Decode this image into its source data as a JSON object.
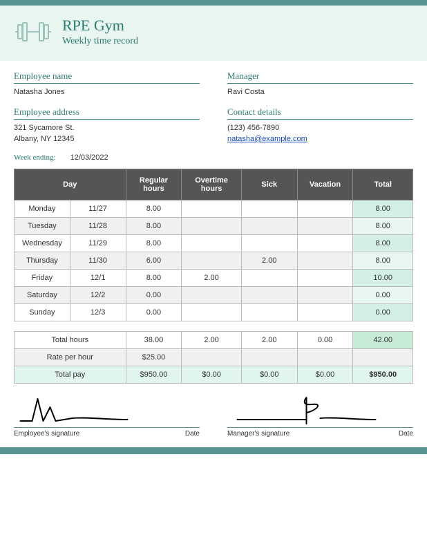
{
  "colors": {
    "accent": "#5a9490",
    "accent_text": "#2a7a6e",
    "header_band": "#e8f5f0",
    "table_header_bg": "#555555",
    "table_header_fg": "#ffffff",
    "row_alt": "#f0f0f0",
    "total_cell": "#d4f0e4",
    "total_cell_alt": "#e8f7f0",
    "highlight": "#c8ebd8",
    "pay_row": "#e0f5eb"
  },
  "header": {
    "company": "RPE Gym",
    "subtitle": "Weekly time record"
  },
  "info": {
    "employee_name_label": "Employee name",
    "employee_name": "Natasha Jones",
    "manager_label": "Manager",
    "manager": "Ravi Costa",
    "employee_address_label": "Employee address",
    "employee_address_line1": "321 Sycamore St.",
    "employee_address_line2": "Albany, NY 12345",
    "contact_label": "Contact details",
    "contact_phone": "(123) 456-7890",
    "contact_email": "natasha@example.com"
  },
  "week_ending": {
    "label": "Week ending:",
    "value": "12/03/2022"
  },
  "table": {
    "headers": {
      "day": "Day",
      "regular": "Regular hours",
      "overtime": "Overtime hours",
      "sick": "Sick",
      "vacation": "Vacation",
      "total": "Total"
    },
    "rows": [
      {
        "day": "Monday",
        "date": "11/27",
        "regular": "8.00",
        "overtime": "",
        "sick": "",
        "vacation": "",
        "total": "8.00"
      },
      {
        "day": "Tuesday",
        "date": "11/28",
        "regular": "8.00",
        "overtime": "",
        "sick": "",
        "vacation": "",
        "total": "8.00"
      },
      {
        "day": "Wednesday",
        "date": "11/29",
        "regular": "8.00",
        "overtime": "",
        "sick": "",
        "vacation": "",
        "total": "8.00"
      },
      {
        "day": "Thursday",
        "date": "11/30",
        "regular": "6.00",
        "overtime": "",
        "sick": "2.00",
        "vacation": "",
        "total": "8.00"
      },
      {
        "day": "Friday",
        "date": "12/1",
        "regular": "8.00",
        "overtime": "2.00",
        "sick": "",
        "vacation": "",
        "total": "10.00"
      },
      {
        "day": "Saturday",
        "date": "12/2",
        "regular": "0.00",
        "overtime": "",
        "sick": "",
        "vacation": "",
        "total": "0.00"
      },
      {
        "day": "Sunday",
        "date": "12/3",
        "regular": "0.00",
        "overtime": "",
        "sick": "",
        "vacation": "",
        "total": "0.00"
      }
    ]
  },
  "summary": {
    "total_hours_label": "Total hours",
    "total_hours": {
      "regular": "38.00",
      "overtime": "2.00",
      "sick": "2.00",
      "vacation": "0.00",
      "total": "42.00"
    },
    "rate_label": "Rate per hour",
    "rate": "$25.00",
    "total_pay_label": "Total pay",
    "total_pay": {
      "regular": "$950.00",
      "overtime": "$0.00",
      "sick": "$0.00",
      "vacation": "$0.00",
      "total": "$950.00"
    }
  },
  "signatures": {
    "employee_label": "Employee's signature",
    "manager_label": "Manager's signature",
    "date_label": "Date"
  }
}
